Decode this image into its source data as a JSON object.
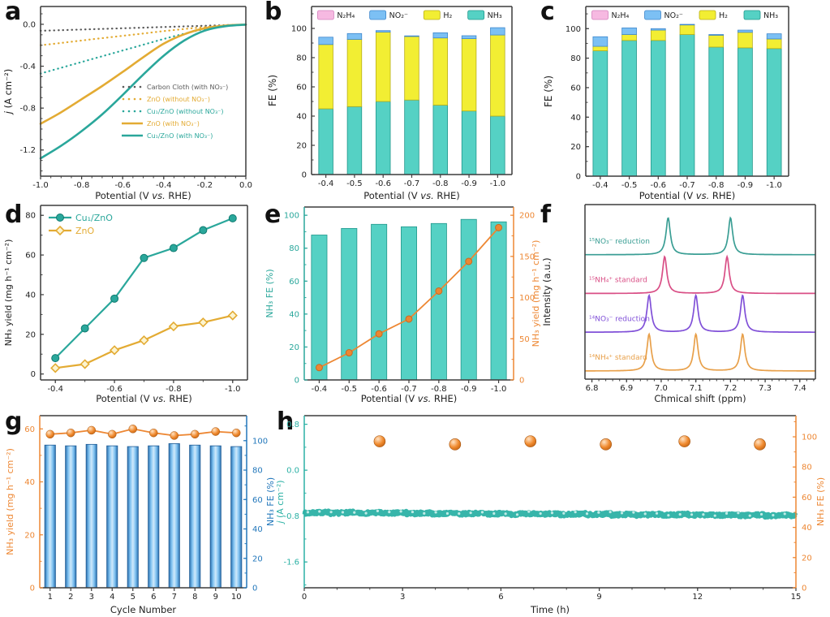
{
  "figure": {
    "background": "#ffffff",
    "frame_color": "#3c3c3c"
  },
  "chart_data": [
    {
      "id": "a",
      "letter": "a",
      "type": "line",
      "xlabel": "Potential (V vs. RHE)",
      "ylabel": "j (A cm⁻²)",
      "xlim": [
        -1.0,
        0.0
      ],
      "ylim": [
        -1.45,
        0.17
      ],
      "xticks": [
        "-1.0",
        "-0.8",
        "-0.6",
        "-0.4",
        "-0.2",
        "0.0"
      ],
      "yticks": [
        "0.0",
        "-0.4",
        "-0.8",
        "-1.2"
      ],
      "x": [
        -1.0,
        -0.9,
        -0.8,
        -0.7,
        -0.6,
        -0.5,
        -0.4,
        -0.3,
        -0.2,
        -0.1,
        0.0
      ],
      "series": [
        {
          "name": "Carbon Cloth (with NO₃⁻)",
          "color": "#5a5a5a",
          "style": "dot",
          "values": [
            -0.062,
            -0.056,
            -0.05,
            -0.044,
            -0.038,
            -0.032,
            -0.026,
            -0.02,
            -0.014,
            -0.008,
            -0.003
          ]
        },
        {
          "name": "ZnO (without NO₃⁻)",
          "color": "#e3ab33",
          "style": "dot",
          "values": [
            -0.2,
            -0.178,
            -0.155,
            -0.132,
            -0.11,
            -0.088,
            -0.065,
            -0.045,
            -0.027,
            -0.012,
            -0.003
          ]
        },
        {
          "name": "Cu₁/ZnO (without NO₃⁻)",
          "color": "#2aa79b",
          "style": "dot",
          "values": [
            -0.47,
            -0.415,
            -0.36,
            -0.305,
            -0.25,
            -0.195,
            -0.14,
            -0.09,
            -0.045,
            -0.015,
            -0.003
          ]
        },
        {
          "name": "ZnO (with NO₃⁻)",
          "color": "#e3ab33",
          "style": "solid",
          "values": [
            -0.95,
            -0.84,
            -0.715,
            -0.59,
            -0.455,
            -0.315,
            -0.185,
            -0.095,
            -0.038,
            -0.012,
            -0.003
          ]
        },
        {
          "name": "Cu₁/ZnO (with NO₃⁻)",
          "color": "#2aa79b",
          "style": "solid",
          "values": [
            -1.28,
            -1.16,
            -1.02,
            -0.86,
            -0.675,
            -0.48,
            -0.3,
            -0.155,
            -0.06,
            -0.018,
            -0.003
          ]
        }
      ],
      "legend_position": "right-middle"
    },
    {
      "id": "b",
      "letter": "b",
      "type": "stacked-bar",
      "xlabel": "Potential (V vs. RHE)",
      "ylabel": "FE (%)",
      "categories": [
        "-0.4",
        "-0.5",
        "-0.6",
        "-0.7",
        "-0.8",
        "-0.9",
        "-1.0"
      ],
      "ylim": [
        0,
        115
      ],
      "yticks": [
        "0",
        "20",
        "40",
        "60",
        "80",
        "100"
      ],
      "stack": [
        {
          "name": "NH₃",
          "color": "#55d1c4",
          "edge": "#21968b",
          "values": [
            45,
            46.5,
            50,
            51,
            47.5,
            43.5,
            40
          ]
        },
        {
          "name": "H₂",
          "color": "#f2ee33",
          "edge": "#b8ae1a",
          "values": [
            44,
            46,
            47.5,
            43.5,
            46,
            49.5,
            55.5
          ]
        },
        {
          "name": "NO₂⁻",
          "color": "#7cc0f4",
          "edge": "#3f87cc",
          "values": [
            5,
            4,
            1,
            0.4,
            3.5,
            2,
            5
          ]
        },
        {
          "name": "N₂H₄",
          "color": "#f6b9e1",
          "edge": "#d381bd",
          "values": [
            0,
            0,
            0,
            0,
            0,
            0,
            0
          ]
        }
      ],
      "legend": [
        {
          "label": "N₂H₄",
          "color": "#f6b9e1",
          "edge": "#d381bd"
        },
        {
          "label": "NO₂⁻",
          "color": "#7cc0f4",
          "edge": "#3f87cc"
        },
        {
          "label": "H₂",
          "color": "#f2ee33",
          "edge": "#b8ae1a"
        },
        {
          "label": "NH₃",
          "color": "#55d1c4",
          "edge": "#21968b"
        }
      ]
    },
    {
      "id": "c",
      "letter": "c",
      "type": "stacked-bar",
      "xlabel": "Potential (V vs. RHE)",
      "ylabel": "FE (%)",
      "categories": [
        "-0.4",
        "-0.5",
        "-0.6",
        "-0.7",
        "-0.8",
        "-0.9",
        "-1.0"
      ],
      "ylim": [
        0,
        115
      ],
      "yticks": [
        "0",
        "20",
        "40",
        "60",
        "80",
        "100"
      ],
      "stack": [
        {
          "name": "NH₃",
          "color": "#55d1c4",
          "edge": "#21968b",
          "values": [
            85,
            92,
            92,
            96,
            87.5,
            87,
            86.5
          ]
        },
        {
          "name": "H₂",
          "color": "#f2ee33",
          "edge": "#b8ae1a",
          "values": [
            3,
            4,
            7,
            6.5,
            8,
            10.5,
            6.5
          ]
        },
        {
          "name": "NO₂⁻",
          "color": "#7cc0f4",
          "edge": "#3f87cc",
          "values": [
            6.5,
            4.5,
            1,
            0.4,
            0.5,
            1.5,
            3.5
          ]
        },
        {
          "name": "N₂H₄",
          "color": "#f6b9e1",
          "edge": "#d381bd",
          "values": [
            0,
            0,
            0,
            0,
            0,
            0,
            0
          ]
        }
      ],
      "legend": [
        {
          "label": "N₂H₄",
          "color": "#f6b9e1",
          "edge": "#d381bd"
        },
        {
          "label": "NO₂⁻",
          "color": "#7cc0f4",
          "edge": "#3f87cc"
        },
        {
          "label": "H₂",
          "color": "#f2ee33",
          "edge": "#b8ae1a"
        },
        {
          "label": "NH₃",
          "color": "#55d1c4",
          "edge": "#21968b"
        }
      ]
    },
    {
      "id": "d",
      "letter": "d",
      "type": "line-markers",
      "xlabel": "Potential (V vs. RHE)",
      "ylabel": "NH₃ yield (mg h⁻¹ cm⁻²)",
      "xlim": [
        -0.35,
        -1.05
      ],
      "ylim": [
        -3,
        85
      ],
      "xticks": [
        "-0.4",
        "-0.6",
        "-0.8",
        "-1.0"
      ],
      "yticks": [
        "0",
        "20",
        "40",
        "60",
        "80"
      ],
      "x": [
        -0.4,
        -0.5,
        -0.6,
        -0.7,
        -0.8,
        -0.9,
        -1.0
      ],
      "series": [
        {
          "name": "Cu₁/ZnO",
          "color": "#2aa79b",
          "marker": "circle",
          "values": [
            8,
            23,
            38,
            58.5,
            63.5,
            72.5,
            78.5
          ]
        },
        {
          "name": "ZnO",
          "color": "#e3ab33",
          "marker": "diamond-open",
          "values": [
            3,
            5,
            12,
            17,
            24,
            26,
            29.5
          ]
        }
      ]
    },
    {
      "id": "e",
      "letter": "e",
      "type": "bar-line-dual",
      "xlabel": "Potential (V vs. RHE)",
      "categories": [
        "-0.4",
        "-0.5",
        "-0.6",
        "-0.7",
        "-0.8",
        "-0.9",
        "-1.0"
      ],
      "left": {
        "label": "NH₃ FE (%)",
        "color": "#2aa79b",
        "lim": [
          0,
          105
        ],
        "ticks": [
          "0",
          "20",
          "40",
          "60",
          "80",
          "100"
        ]
      },
      "right": {
        "label": "NH₃ yield (mg h⁻¹ cm⁻²)",
        "color": "#ed8733",
        "lim": [
          0,
          210
        ],
        "ticks": [
          "0",
          "50",
          "100",
          "150",
          "200"
        ]
      },
      "bars": {
        "axis": "left",
        "color": "#55d1c4",
        "edge": "#21968b",
        "values": [
          88,
          92,
          94.5,
          93,
          95,
          97.5,
          96
        ]
      },
      "line": {
        "axis": "right",
        "color": "#ed8733",
        "marker": "circle-flat",
        "values": [
          15,
          33,
          56,
          74,
          108,
          144,
          185
        ]
      }
    },
    {
      "id": "f",
      "letter": "f",
      "type": "nmr",
      "xlabel": "Chmical shift (ppm)",
      "ylabel": "Intensity (a.u.)",
      "xlim": [
        6.78,
        7.445
      ],
      "xticks": [
        "6.8",
        "6.9",
        "7.0",
        "7.1",
        "7.2",
        "7.3",
        "7.4"
      ],
      "peak_width": 0.0075,
      "traces": [
        {
          "label": "¹⁵NO₃⁻ reduction",
          "color": "#3a9e94",
          "peaks": [
            7.02,
            7.2
          ]
        },
        {
          "label": "¹⁵NH₄⁺ standard",
          "color": "#d94f86",
          "peaks": [
            7.01,
            7.19
          ]
        },
        {
          "label": "¹⁴NO₃⁻ reduction",
          "color": "#8050d8",
          "peaks": [
            6.965,
            7.1,
            7.235
          ]
        },
        {
          "label": "¹⁴NH₄⁺ standard",
          "color": "#e8a04a",
          "peaks": [
            6.965,
            7.1,
            7.235
          ]
        }
      ]
    },
    {
      "id": "g",
      "letter": "g",
      "type": "bar-line-dual",
      "xlabel": "Cycle Number",
      "categories": [
        "1",
        "2",
        "3",
        "4",
        "5",
        "6",
        "7",
        "8",
        "9",
        "10"
      ],
      "left": {
        "label": "NH₃ yield (mg h⁻¹ cm⁻²)",
        "color": "#ed8733",
        "lim": [
          0,
          65
        ],
        "ticks": [
          "0",
          "20",
          "40",
          "60"
        ]
      },
      "right": {
        "label": "NH₃ FE (%)",
        "color": "#2277bb",
        "lim": [
          0,
          117
        ],
        "ticks": [
          "0",
          "20",
          "40",
          "60",
          "80",
          "100"
        ]
      },
      "bars": {
        "axis": "right",
        "color": "gradient-blue",
        "edge": "#1d5a94",
        "values": [
          97,
          96.5,
          97.5,
          96.5,
          96,
          96.5,
          98,
          97,
          96.5,
          96
        ]
      },
      "line": {
        "axis": "left",
        "color": "#ed8733",
        "marker": "sphere",
        "values": [
          58,
          58.5,
          59.5,
          58,
          60,
          58.5,
          57.5,
          58,
          59,
          58.5
        ]
      }
    },
    {
      "id": "h",
      "letter": "h",
      "type": "stability",
      "xlabel": "Time (h)",
      "xlim": [
        0,
        15
      ],
      "xticks": [
        "0",
        "3",
        "6",
        "9",
        "12",
        "15"
      ],
      "left": {
        "label": "j (A cm⁻²)",
        "color": "#2cb1a5",
        "lim": [
          -2.05,
          0.95
        ],
        "ticks": [
          "0.8",
          "0.0",
          "-0.8",
          "-1.6"
        ]
      },
      "right": {
        "label": "NH₃ FE (%)",
        "color": "#ed8733",
        "lim": [
          0,
          114
        ],
        "ticks": [
          "0",
          "20",
          "40",
          "60",
          "80",
          "100"
        ]
      },
      "current": {
        "color": "#2cb1a5",
        "start": -0.74,
        "end": -0.79,
        "noise": 0.05
      },
      "fe_points": {
        "color": "#ed7d31",
        "x": [
          2.3,
          4.6,
          6.9,
          9.2,
          11.6,
          13.9
        ],
        "values": [
          97,
          95,
          97,
          95,
          97,
          95
        ]
      }
    }
  ]
}
